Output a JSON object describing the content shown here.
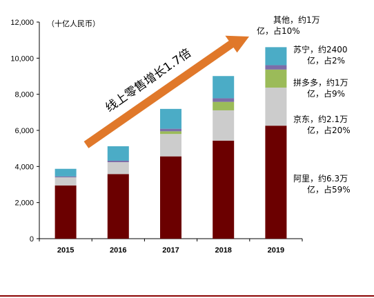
{
  "chart_data": {
    "type": "bar",
    "stacked": true,
    "unit_label": "（十亿人民币）",
    "categories": [
      "2015",
      "2016",
      "2017",
      "2018",
      "2019"
    ],
    "ylim": [
      0,
      12000
    ],
    "yticks": [
      "0",
      "2,000",
      "4,000",
      "6,000",
      "8,000",
      "10,000",
      "12,000"
    ],
    "series": [
      {
        "name": "阿里",
        "color": "#6b0000",
        "values": [
          2950,
          3580,
          4560,
          5430,
          6260
        ]
      },
      {
        "name": "京东",
        "color": "#cccccc",
        "values": [
          450,
          660,
          1240,
          1680,
          2110
        ]
      },
      {
        "name": "拼多多",
        "color": "#9bbb59",
        "values": [
          0,
          0,
          150,
          470,
          1000
        ]
      },
      {
        "name": "苏宁",
        "color": "#7c6da8",
        "values": [
          50,
          80,
          140,
          200,
          240
        ]
      },
      {
        "name": "其他",
        "color": "#4bacc6",
        "values": [
          420,
          800,
          1100,
          1230,
          1000
        ]
      }
    ],
    "annotations": [
      {
        "series": "其他",
        "line1": "其他，约1万",
        "line2": "亿，占10%"
      },
      {
        "series": "苏宁",
        "line1": "苏宁，约2400",
        "line2": "亿，占2%"
      },
      {
        "series": "拼多多",
        "line1": "拼多多，约1万",
        "line2": "亿，占9%"
      },
      {
        "series": "京东",
        "line1": "京东，约2.1万",
        "line2": "亿，占20%"
      },
      {
        "series": "阿里",
        "line1": "阿里，约6.3万",
        "line2": "亿，占59%"
      }
    ],
    "arrow": {
      "label": "线上零售增长1.7倍",
      "color": "#e0782a"
    },
    "grid": false,
    "legend": "none"
  }
}
